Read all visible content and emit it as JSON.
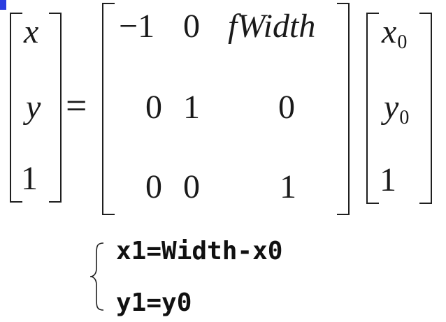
{
  "lhs_vector": [
    "x",
    "y",
    "1"
  ],
  "equals_sign": "=",
  "matrix": {
    "row1": [
      "−1",
      "0",
      "fWidth"
    ],
    "row2": [
      "0",
      "1",
      "0"
    ],
    "row3": [
      "0",
      "0",
      "1"
    ]
  },
  "rhs_vector": {
    "x_base": "x",
    "x_sub": "0",
    "y_base": "y",
    "y_sub": "0",
    "third": "1"
  },
  "system": {
    "line1": "x1=Width-x0",
    "line2": "y1=y0"
  },
  "colors": {
    "ink": "#1a1a1a",
    "cursor_marker": "#2b3de0"
  }
}
